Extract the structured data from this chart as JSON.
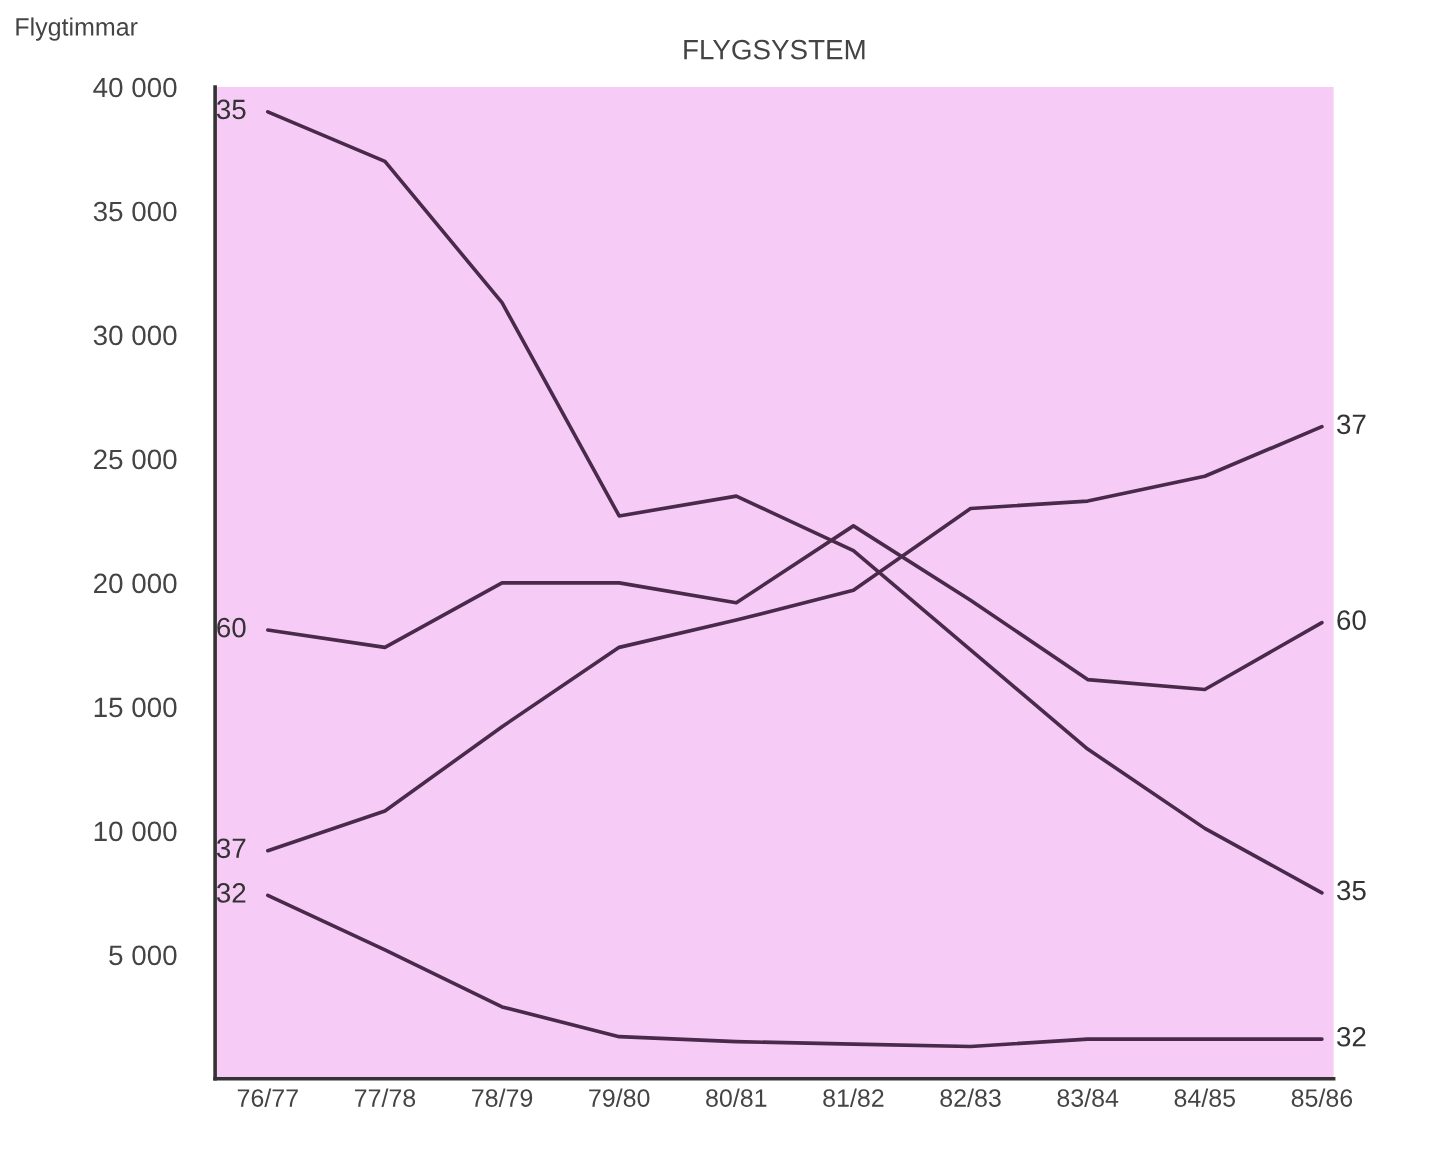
{
  "chart_data": {
    "type": "line",
    "title": "FLYGSYSTEM",
    "ylabel": "Flygtimmar",
    "categories": [
      "76/77",
      "77/78",
      "78/79",
      "79/80",
      "80/81",
      "81/82",
      "82/83",
      "83/84",
      "84/85",
      "85/86"
    ],
    "series": [
      {
        "name": "35",
        "color": "#4a2a4a",
        "values": [
          39000,
          37000,
          31300,
          22700,
          23500,
          21300,
          17300,
          13300,
          10100,
          7500
        ]
      },
      {
        "name": "60",
        "color": "#4a2a4a",
        "values": [
          18100,
          17400,
          20000,
          20000,
          19200,
          22300,
          19300,
          16100,
          15700,
          18400
        ]
      },
      {
        "name": "37",
        "color": "#4a2a4a",
        "values": [
          9200,
          10800,
          14200,
          17400,
          18500,
          19700,
          23000,
          23300,
          24300,
          26300
        ]
      },
      {
        "name": "32",
        "color": "#4a2a4a",
        "values": [
          7400,
          5200,
          2900,
          1700,
          1500,
          1400,
          1300,
          1600,
          1600,
          1600
        ]
      }
    ],
    "ylim": [
      0,
      40000
    ],
    "yticks": [
      {
        "value": 5000,
        "label": "5 000"
      },
      {
        "value": 10000,
        "label": "10 000"
      },
      {
        "value": 15000,
        "label": "15 000"
      },
      {
        "value": 20000,
        "label": "20 000"
      },
      {
        "value": 25000,
        "label": "25 000"
      },
      {
        "value": 30000,
        "label": "30 000"
      },
      {
        "value": 35000,
        "label": "35 000"
      },
      {
        "value": 40000,
        "label": "40 000"
      }
    ],
    "grid": false,
    "legend": false,
    "marker": "none",
    "line_style": "solid"
  }
}
